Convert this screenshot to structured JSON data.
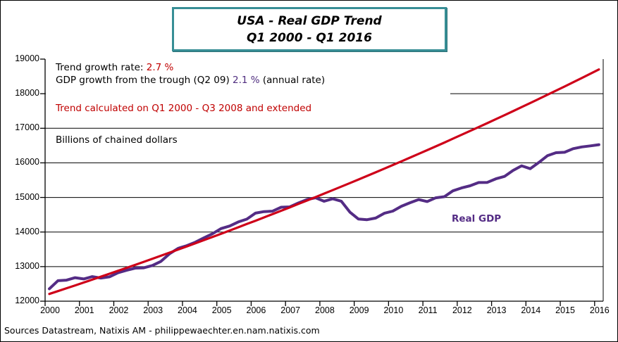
{
  "title": {
    "line1": "USA - Real GDP Trend",
    "line2": "Q1 2000 - Q1 2016"
  },
  "annotations": {
    "trend_growth": {
      "label": "Trend growth rate: ",
      "value": "2.7 %"
    },
    "gdp_growth": {
      "prefix": "GDP growth from the trough (Q2 09) ",
      "value": "2.1 %",
      "suffix": " (annual rate)"
    },
    "trend_note": "Trend calculated on Q1 2000 - Q3 2008 and extended",
    "units": "Billions of chained dollars",
    "series_label": "Real GDP"
  },
  "footer": {
    "text": "Sources Datastream, Natixis AM - philippewaechter.en.nam.natixis.com"
  },
  "colors": {
    "trend_line": "#CE0019",
    "gdp_line": "#542C85",
    "red_text": "#C00000",
    "purple_text": "#4F2D7F",
    "title_border": "#378E95",
    "axis": "#000000"
  },
  "chart_data": {
    "type": "line",
    "title": "USA - Real GDP Trend Q1 2000 - Q1 2016",
    "ylabel": "Billions of chained dollars",
    "ylim": [
      12000,
      19000
    ],
    "y_ticks": [
      12000,
      13000,
      14000,
      15000,
      16000,
      17000,
      18000,
      19000
    ],
    "x_tick_years": [
      2000,
      2001,
      2002,
      2003,
      2004,
      2005,
      2006,
      2007,
      2008,
      2009,
      2010,
      2011,
      2012,
      2013,
      2014,
      2015,
      2016
    ],
    "x_start": "2000-Q1",
    "x_end": "2016-Q1",
    "frequency": "quarterly",
    "grid": "horizontal gridlines every 1000, 18000 gridline hidden behind annotation box on left",
    "legend_position": "in-plot text labels",
    "series": [
      {
        "name": "Real GDP",
        "color": "#542C85",
        "values": [
          12359,
          12592,
          12608,
          12679,
          12643,
          12710,
          12670,
          12705,
          12822,
          12893,
          12956,
          12964,
          13031,
          13152,
          13372,
          13529,
          13606,
          13706,
          13831,
          13950,
          14099,
          14173,
          14292,
          14373,
          14546,
          14590,
          14603,
          14717,
          14726,
          14839,
          14939,
          14992,
          14890,
          14963,
          14892,
          14577,
          14375,
          14356,
          14403,
          14542,
          14605,
          14746,
          14846,
          14939,
          14881,
          14990,
          15021,
          15190,
          15275,
          15337,
          15431,
          15434,
          15538,
          15607,
          15780,
          15916,
          15832,
          16010,
          16206,
          16294,
          16305,
          16410,
          16460,
          16490,
          16525
        ]
      },
      {
        "name": "Trend",
        "color": "#CE0019",
        "description": "2.7 % annual growth trend, calculated on Q1 2000 - Q3 2008 and extended",
        "start_value": 12210,
        "annual_growth_rate_pct": 2.7,
        "end_value": 18700
      }
    ]
  }
}
